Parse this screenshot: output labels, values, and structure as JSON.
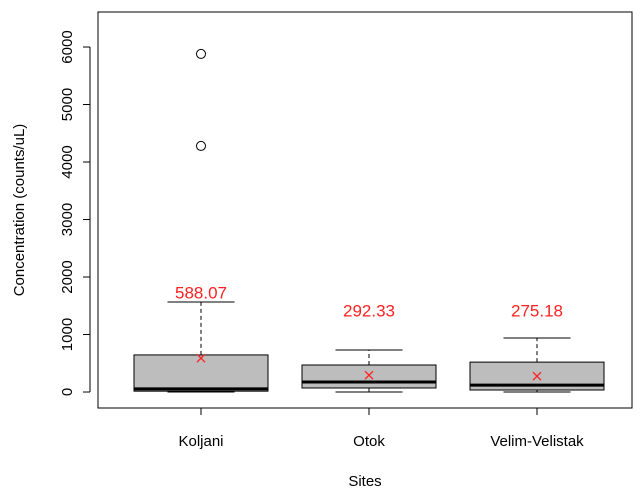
{
  "chart_data": {
    "type": "box",
    "x_label": "Sites",
    "y_label": "Concentration (counts/uL)",
    "categories": [
      "Koljani",
      "Otok",
      "Velim-Velistak"
    ],
    "whisker_low": [
      0,
      0,
      0
    ],
    "q1": [
      15,
      70,
      35
    ],
    "median": [
      55,
      175,
      120
    ],
    "q3": [
      645,
      470,
      520
    ],
    "whisker_high": [
      1565,
      730,
      940
    ],
    "outliers": [
      [
        4280,
        5880
      ],
      [],
      []
    ],
    "means": [
      588.07,
      292.33,
      275.18
    ],
    "box_color": "#bdbdbd",
    "mean_color": "#ff2020",
    "ylim": [
      -278,
      6609
    ],
    "yticks": [
      0,
      1000,
      2000,
      3000,
      4000,
      5000,
      6000
    ]
  }
}
